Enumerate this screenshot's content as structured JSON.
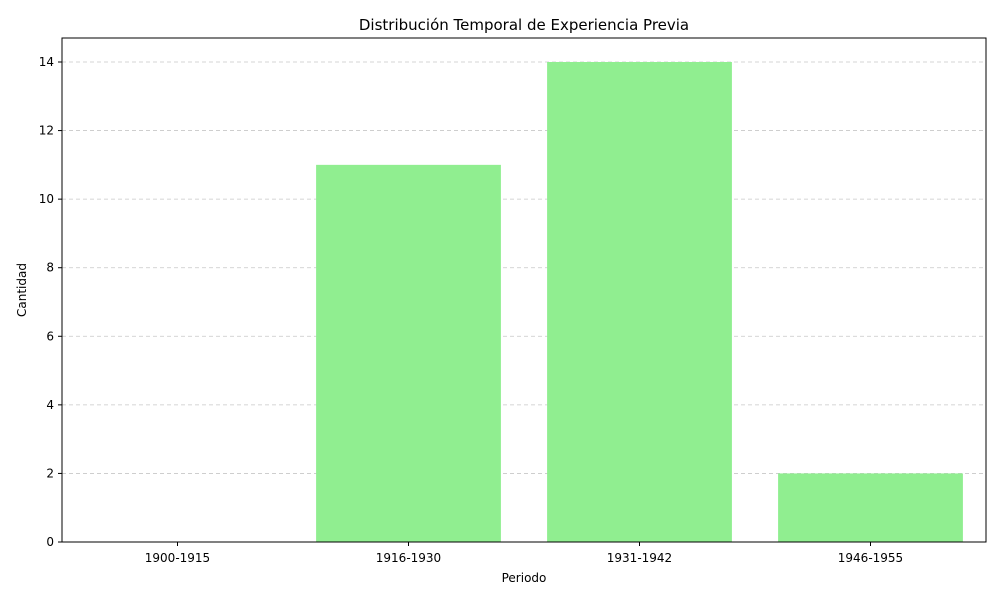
{
  "chart_data": {
    "type": "bar",
    "title": "Distribución Temporal de Experiencia Previa",
    "xlabel": "Periodo",
    "ylabel": "Cantidad",
    "categories": [
      "1900-1915",
      "1916-1930",
      "1931-1942",
      "1946-1955"
    ],
    "values": [
      0,
      11,
      14,
      2
    ],
    "ylim": [
      0,
      14.7
    ],
    "yticks": [
      0,
      2,
      4,
      6,
      8,
      10,
      12,
      14
    ],
    "grid": "y-dashed",
    "bar_color": "#90ee90"
  }
}
